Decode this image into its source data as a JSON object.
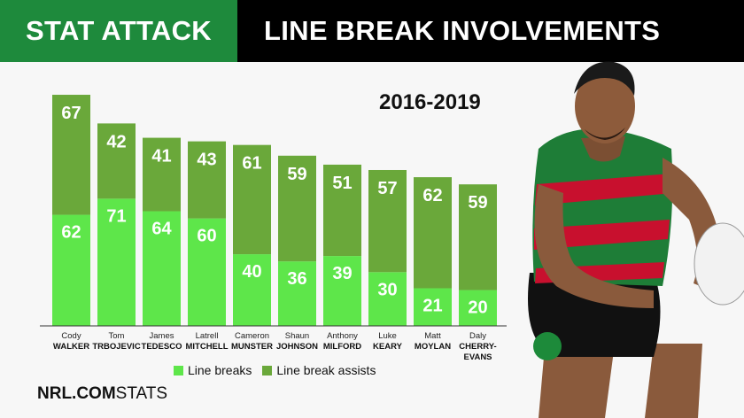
{
  "header": {
    "left_title": "STAT ATTACK",
    "right_title": "LINE BREAK INVOLVEMENTS"
  },
  "period": "2016-2019",
  "legend": {
    "breaks_label": "Line breaks",
    "assists_label": "Line break assists"
  },
  "brand": {
    "bold": "NRL.COM",
    "regular": "STATS"
  },
  "colors": {
    "breaks": "#5ee64a",
    "assists": "#6aa83a",
    "header_green": "#1e8a3c"
  },
  "chart_data": {
    "type": "bar",
    "stacked": true,
    "categories": [
      {
        "first": "Cody",
        "last": "WALKER"
      },
      {
        "first": "Tom",
        "last": "TRBOJEVIC"
      },
      {
        "first": "James",
        "last": "TEDESCO"
      },
      {
        "first": "Latrell",
        "last": "MITCHELL"
      },
      {
        "first": "Cameron",
        "last": "MUNSTER"
      },
      {
        "first": "Shaun",
        "last": "JOHNSON"
      },
      {
        "first": "Anthony",
        "last": "MILFORD"
      },
      {
        "first": "Luke",
        "last": "KEARY"
      },
      {
        "first": "Matt",
        "last": "MOYLAN"
      },
      {
        "first": "Daly",
        "last": "CHERRY-\nEVANS"
      }
    ],
    "series": [
      {
        "name": "Line breaks",
        "values": [
          62,
          71,
          64,
          60,
          40,
          36,
          39,
          30,
          21,
          20
        ]
      },
      {
        "name": "Line break assists",
        "values": [
          67,
          42,
          41,
          43,
          61,
          59,
          51,
          57,
          62,
          59
        ]
      }
    ],
    "ylim": [
      0,
      130
    ]
  }
}
